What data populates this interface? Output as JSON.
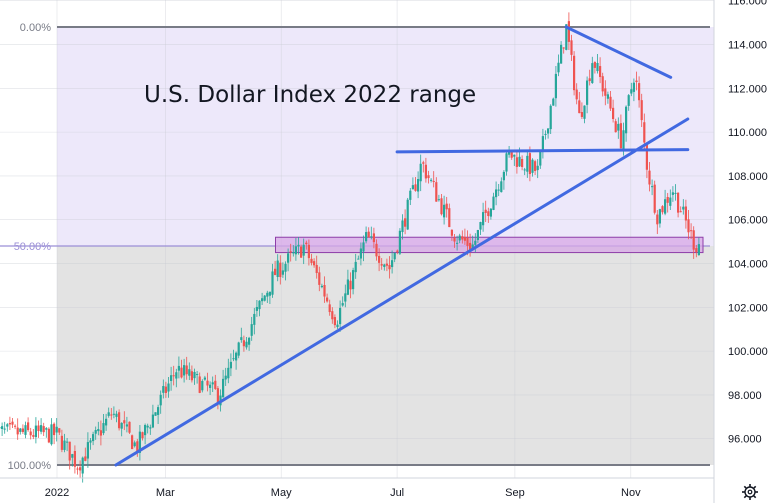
{
  "chart_data": {
    "type": "candlestick",
    "title": "U.S. Dollar Index 2022 range",
    "x_tick_labels": [
      "2022",
      "Mar",
      "May",
      "Jul",
      "Sep",
      "Nov"
    ],
    "y_tick_labels": [
      "96.000",
      "98.000",
      "100.000",
      "102.000",
      "104.000",
      "106.000",
      "108.000",
      "110.000",
      "112.000",
      "114.000",
      "116.000"
    ],
    "ylim": [
      94.0,
      116.2
    ],
    "fib_levels": [
      {
        "label": "0.00%",
        "value": 114.8
      },
      {
        "label": "50.00%",
        "value": 104.8
      },
      {
        "label": "100.00%",
        "value": 94.8
      }
    ],
    "colors": {
      "up": "#26a69a",
      "down": "#ef5350",
      "trendline": "#4169e1",
      "upper_zone": "#ede8fa",
      "lower_zone": "#e3e3e3",
      "support_box": "#d7a8e6",
      "support_box_border": "#8e3ea8"
    },
    "daily_path": [
      {
        "date": "2021-12-01",
        "value": 96.3
      },
      {
        "date": "2022-01-03",
        "value": 96.2
      },
      {
        "date": "2022-01-14",
        "value": 94.8
      },
      {
        "date": "2022-02-01",
        "value": 97.2
      },
      {
        "date": "2022-02-14",
        "value": 95.6
      },
      {
        "date": "2022-03-07",
        "value": 99.2
      },
      {
        "date": "2022-03-29",
        "value": 98.0
      },
      {
        "date": "2022-04-28",
        "value": 103.6
      },
      {
        "date": "2022-05-13",
        "value": 104.8
      },
      {
        "date": "2022-05-30",
        "value": 101.4
      },
      {
        "date": "2022-06-15",
        "value": 105.2
      },
      {
        "date": "2022-06-27",
        "value": 103.8
      },
      {
        "date": "2022-07-14",
        "value": 108.6
      },
      {
        "date": "2022-08-01",
        "value": 105.2
      },
      {
        "date": "2022-08-10",
        "value": 104.8
      },
      {
        "date": "2022-08-29",
        "value": 109.0
      },
      {
        "date": "2022-09-13",
        "value": 108.2
      },
      {
        "date": "2022-09-28",
        "value": 114.8
      },
      {
        "date": "2022-10-05",
        "value": 110.6
      },
      {
        "date": "2022-10-12",
        "value": 113.4
      },
      {
        "date": "2022-10-27",
        "value": 109.6
      },
      {
        "date": "2022-11-03",
        "value": 112.8
      },
      {
        "date": "2022-11-10",
        "value": 108.2
      },
      {
        "date": "2022-11-15",
        "value": 106.2
      },
      {
        "date": "2022-11-23",
        "value": 107.4
      },
      {
        "date": "2022-12-05",
        "value": 104.8
      },
      {
        "date": "2022-12-08",
        "value": 105.0
      }
    ],
    "trendlines": [
      {
        "from": {
          "date": "2022-02-03",
          "value": 94.8
        },
        "to": {
          "date": "2022-12-01",
          "value": 110.6
        }
      },
      {
        "from": {
          "date": "2022-07-01",
          "value": 109.1
        },
        "to": {
          "date": "2022-12-01",
          "value": 109.2
        }
      },
      {
        "from": {
          "date": "2022-09-28",
          "value": 114.8
        },
        "to": {
          "date": "2022-11-22",
          "value": 112.5
        }
      }
    ],
    "support_zone": {
      "from": "2022-04-28",
      "to": "2022-12-09",
      "low": 104.5,
      "high": 105.2
    }
  }
}
